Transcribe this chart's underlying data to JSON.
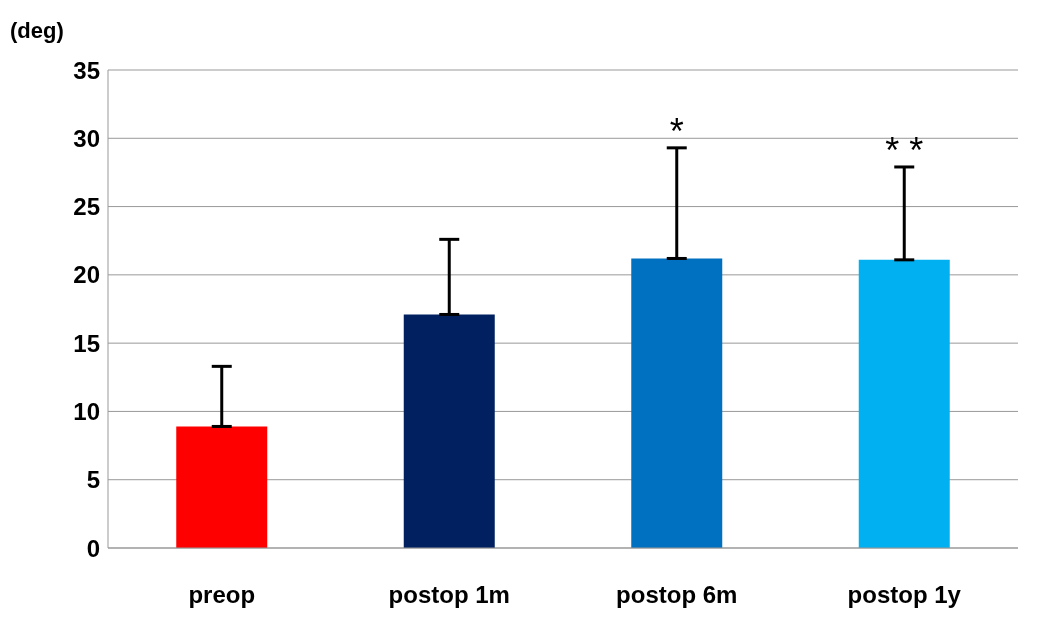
{
  "chart_data": {
    "type": "bar",
    "ylabel": "(deg)",
    "categories": [
      "preop",
      "postop 1m",
      "postop 6m",
      "postop 1y"
    ],
    "values": [
      8.9,
      17.1,
      21.2,
      21.1
    ],
    "colors": [
      "#ff0000",
      "#002060",
      "#0070c0",
      "#00b0f0"
    ],
    "errors": [
      [
        8.9,
        13.3
      ],
      [
        17.1,
        22.6
      ],
      [
        21.2,
        29.3
      ],
      [
        21.1,
        27.9
      ]
    ],
    "ylim": [
      0,
      35
    ],
    "yticks": [
      0,
      5,
      10,
      15,
      20,
      25,
      30,
      35
    ],
    "grid": "y",
    "annotations": [
      {
        "text": "*",
        "x": "postop 6m",
        "y": 29.3
      },
      {
        "text": "* *",
        "x": "postop 1y",
        "y": 27.9
      }
    ]
  }
}
